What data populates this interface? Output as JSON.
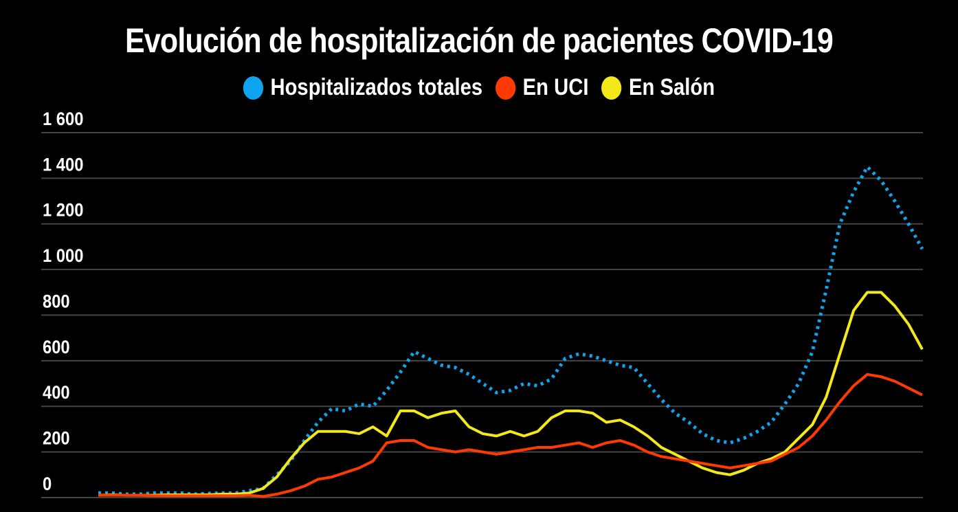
{
  "chart_data": {
    "type": "line",
    "title": "Evolución de hospitalización de pacientes COVID-19",
    "xlabel": "",
    "ylabel": "",
    "ylim": [
      0,
      1600
    ],
    "yticks": [
      0,
      200,
      400,
      600,
      800,
      1000,
      1200,
      1400,
      1600
    ],
    "ytick_labels": [
      "0",
      "200",
      "400",
      "600",
      "800",
      "1 000",
      "1 200",
      "1 400",
      "1 600"
    ],
    "grid": true,
    "legend_position": "top-center",
    "x": [
      0,
      1,
      2,
      3,
      4,
      5,
      6,
      7,
      8,
      9,
      10,
      11,
      12,
      13,
      14,
      15,
      16,
      17,
      18,
      19,
      20,
      21,
      22,
      23,
      24,
      25,
      26,
      27,
      28,
      29,
      30,
      31,
      32,
      33,
      34,
      35,
      36,
      37,
      38,
      39,
      40,
      41,
      42,
      43,
      44,
      45,
      46,
      47,
      48,
      49,
      50,
      51,
      52,
      53,
      54,
      55,
      56,
      57,
      58,
      59,
      60
    ],
    "series": [
      {
        "name": "Hospitalizados totales",
        "color": "#0ea5f0",
        "style": "dotted",
        "values": [
          20,
          20,
          15,
          15,
          20,
          20,
          20,
          15,
          18,
          20,
          20,
          30,
          40,
          100,
          160,
          250,
          330,
          390,
          380,
          410,
          400,
          470,
          550,
          640,
          610,
          580,
          570,
          540,
          500,
          460,
          470,
          500,
          490,
          520,
          610,
          630,
          620,
          600,
          580,
          570,
          500,
          430,
          370,
          330,
          280,
          250,
          240,
          260,
          290,
          330,
          410,
          500,
          640,
          910,
          1200,
          1340,
          1450,
          1390,
          1300,
          1200,
          1090
        ]
      },
      {
        "name": "En UCI",
        "color": "#ff3a00",
        "style": "solid",
        "values": [
          10,
          10,
          10,
          10,
          8,
          8,
          8,
          8,
          8,
          8,
          8,
          10,
          5,
          15,
          30,
          50,
          80,
          90,
          110,
          130,
          160,
          240,
          250,
          250,
          220,
          210,
          200,
          210,
          200,
          190,
          200,
          210,
          220,
          220,
          230,
          240,
          220,
          240,
          250,
          230,
          200,
          180,
          170,
          160,
          150,
          140,
          130,
          140,
          150,
          160,
          190,
          220,
          270,
          340,
          420,
          490,
          540,
          530,
          510,
          480,
          450
        ]
      },
      {
        "name": "En Salón",
        "color": "#f2e81a",
        "style": "solid",
        "values": [
          10,
          12,
          10,
          10,
          10,
          12,
          12,
          12,
          12,
          15,
          15,
          20,
          40,
          90,
          170,
          240,
          290,
          290,
          290,
          280,
          310,
          270,
          380,
          380,
          350,
          370,
          380,
          310,
          280,
          270,
          290,
          270,
          290,
          350,
          380,
          380,
          370,
          330,
          340,
          310,
          270,
          220,
          190,
          160,
          130,
          110,
          100,
          120,
          150,
          170,
          200,
          260,
          320,
          440,
          630,
          820,
          900,
          900,
          840,
          760,
          650
        ]
      }
    ]
  }
}
